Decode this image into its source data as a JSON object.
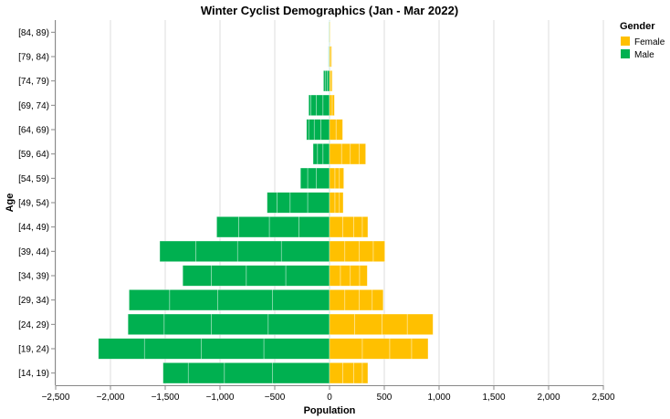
{
  "chart_data": {
    "type": "bar",
    "orientation": "horizontal",
    "stacked": true,
    "title": "Winter Cyclist Demographics (Jan - Mar 2022)",
    "xlabel": "Population",
    "ylabel": "Age",
    "xlim": [
      -2500,
      2500
    ],
    "x_ticks": [
      "−2,500",
      "−2,000",
      "−1,500",
      "−1,000",
      "−500",
      "0",
      "500",
      "1,000",
      "1,500",
      "2,000",
      "2,500"
    ],
    "x_tick_values": [
      -2500,
      -2000,
      -1500,
      -1000,
      -500,
      0,
      500,
      1000,
      1500,
      2000,
      2500
    ],
    "grid": true,
    "legend": {
      "title": "Gender",
      "position": "top-right",
      "items": [
        {
          "label": "Female",
          "color": "#ffc000"
        },
        {
          "label": "Male",
          "color": "#00b050"
        }
      ]
    },
    "categories": [
      "[84, 89)",
      "[79, 84)",
      "[74, 79)",
      "[69, 74)",
      "[64, 69)",
      "[59, 64)",
      "[54, 59)",
      "[49, 54)",
      "[44, 49)",
      "[39, 44)",
      "[34, 39)",
      "[29, 34)",
      "[24, 29)",
      "[19, 24)",
      "[14, 19)"
    ],
    "series": [
      {
        "name": "Male",
        "color": "#00b050",
        "values": [
          -5,
          -10,
          -55,
          -190,
          -210,
          -150,
          -265,
          -570,
          -1030,
          -1550,
          -1340,
          -1830,
          -1840,
          -2110,
          -1520
        ],
        "segments": [
          [
            -5
          ],
          [
            -4,
            -3,
            -3
          ],
          [
            -20,
            -20,
            -15
          ],
          [
            -60,
            -60,
            -50,
            -20
          ],
          [
            -80,
            -60,
            -50,
            -20
          ],
          [
            -60,
            -50,
            -40
          ],
          [
            -120,
            -80,
            -65
          ],
          [
            -200,
            -160,
            -120,
            -90
          ],
          [
            -280,
            -270,
            -280,
            -200
          ],
          [
            -440,
            -400,
            -380,
            -330
          ],
          [
            -400,
            -360,
            -320,
            -260
          ],
          [
            -520,
            -500,
            -440,
            -370
          ],
          [
            -560,
            -520,
            -430,
            -330
          ],
          [
            -600,
            -570,
            -520,
            -420
          ],
          [
            -520,
            -440,
            -330,
            -230
          ]
        ]
      },
      {
        "name": "Female",
        "color": "#ffc000",
        "values": [
          5,
          20,
          25,
          45,
          120,
          330,
          130,
          125,
          350,
          505,
          345,
          490,
          945,
          900,
          350
        ],
        "segments": [
          [
            5
          ],
          [
            10,
            10
          ],
          [
            15,
            10
          ],
          [
            25,
            20
          ],
          [
            60,
            60
          ],
          [
            110,
            80,
            80,
            60
          ],
          [
            50,
            40,
            40
          ],
          [
            50,
            40,
            35
          ],
          [
            120,
            100,
            80,
            50
          ],
          [
            140,
            130,
            130,
            105
          ],
          [
            100,
            90,
            85,
            70
          ],
          [
            140,
            130,
            120,
            100
          ],
          [
            230,
            250,
            230,
            235
          ],
          [
            300,
            250,
            200,
            150
          ],
          [
            120,
            100,
            80,
            50
          ]
        ]
      }
    ]
  }
}
